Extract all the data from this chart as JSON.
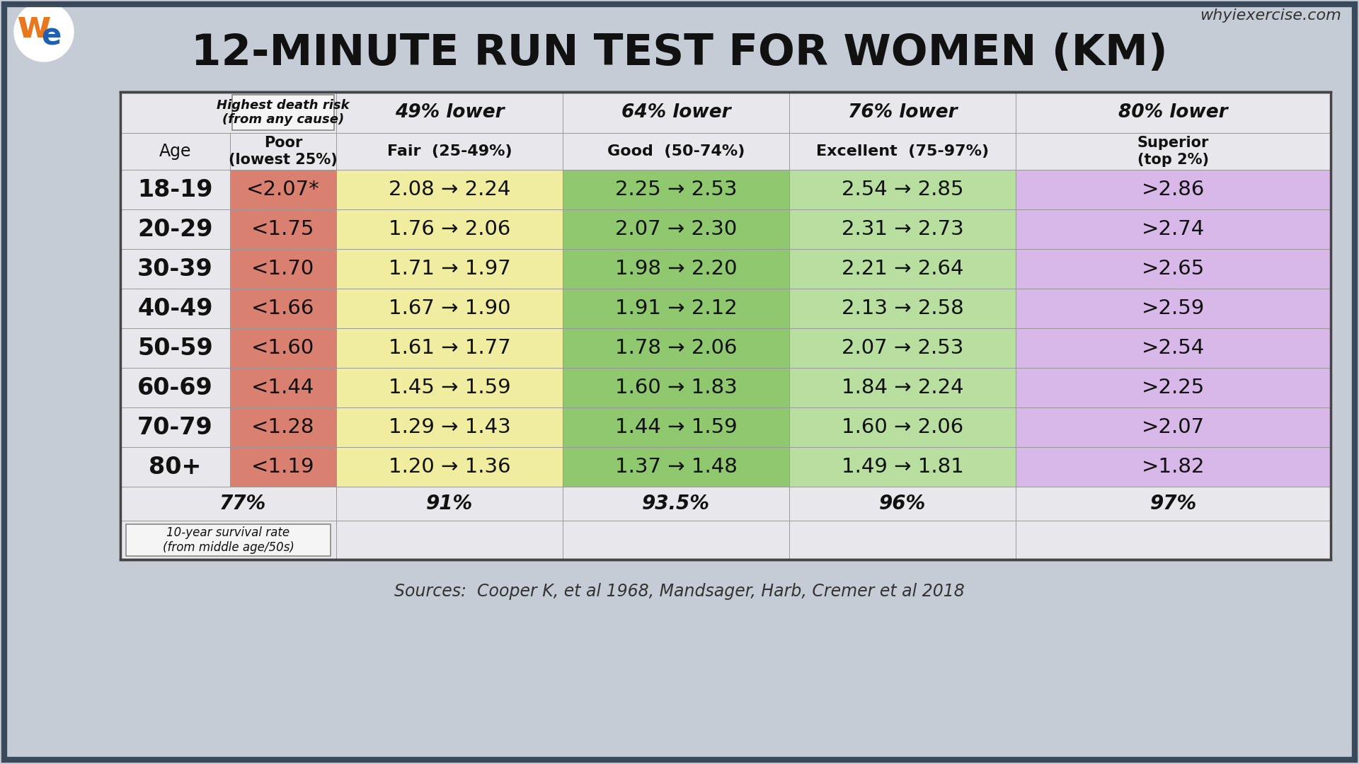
{
  "title": "12-MINUTE RUN TEST FOR WOMEN (KM)",
  "background_color": "#c5ccd5",
  "age_groups": [
    "18-19",
    "20-29",
    "30-39",
    "40-49",
    "50-59",
    "60-69",
    "70-79",
    "80+"
  ],
  "poor": [
    "<2.07*",
    "<1.75",
    "<1.70",
    "<1.66",
    "<1.60",
    "<1.44",
    "<1.28",
    "<1.19"
  ],
  "fair": [
    "2.08 → 2.24",
    "1.76 → 2.06",
    "1.71 → 1.97",
    "1.67 → 1.90",
    "1.61 → 1.77",
    "1.45 → 1.59",
    "1.29 → 1.43",
    "1.20 → 1.36"
  ],
  "good": [
    "2.25 → 2.53",
    "2.07 → 2.30",
    "1.98 → 2.20",
    "1.91 → 2.12",
    "1.78 → 2.06",
    "1.60 → 1.83",
    "1.44 → 1.59",
    "1.37 → 1.48"
  ],
  "excellent": [
    "2.54 → 2.85",
    "2.31 → 2.73",
    "2.21 → 2.64",
    "2.13 → 2.58",
    "2.07 → 2.53",
    "1.84 → 2.24",
    "1.60 → 2.06",
    "1.49 → 1.81"
  ],
  "superior": [
    ">2.86",
    ">2.74",
    ">2.65",
    ">2.59",
    ">2.54",
    ">2.25",
    ">2.07",
    ">1.82"
  ],
  "survival_rates": [
    "77%",
    "91%",
    "93.5%",
    "96%",
    "97%"
  ],
  "survival_label": "10-year survival rate\n(from middle age/50s)",
  "sources": "Sources:  Cooper K, et al 1968, Mandsager, Harb, Cremer et al 2018",
  "poor_color": "#d98070",
  "fair_color": "#f0eda0",
  "good_color": "#90c870",
  "excellent_color": "#b8dfa0",
  "superior_color": "#d8b8e8",
  "age_col_color": "#e8e8ec",
  "header_bg": "#e8e8ec",
  "website": "whyiexercise.com",
  "logo_w_color": "#e87820",
  "logo_e_color": "#2060b0"
}
